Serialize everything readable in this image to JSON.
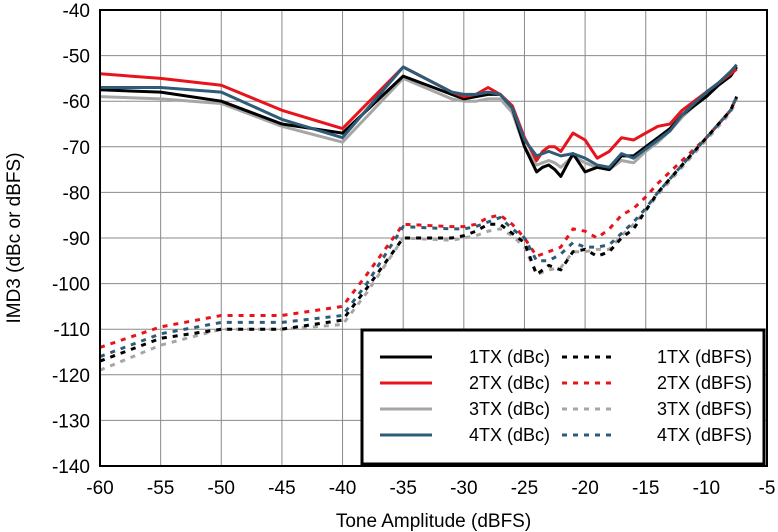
{
  "chart_data": {
    "type": "line",
    "title": "",
    "xlabel": "Tone Amplitude (dBFS)",
    "ylabel": "IMD3 (dBc or dBFS)",
    "xlim": [
      -60,
      -5
    ],
    "ylim": [
      -140,
      -40
    ],
    "xticks": [
      -60,
      -55,
      -50,
      -45,
      -40,
      -35,
      -30,
      -25,
      -20,
      -15,
      -10,
      -5
    ],
    "yticks": [
      -40,
      -50,
      -60,
      -70,
      -80,
      -90,
      -100,
      -110,
      -120,
      -130,
      -140
    ],
    "xtick_labels": [
      "-60",
      "-55",
      "-50",
      "-45",
      "-40",
      "-35",
      "-30",
      "-25",
      "-20",
      "-15",
      "-10",
      "-5"
    ],
    "ytick_labels": [
      "-40",
      "-50",
      "-60",
      "-70",
      "-80",
      "-90",
      "-100",
      "-110",
      "-120",
      "-130",
      "-140"
    ],
    "grid": true,
    "legend_position": "bottom-right",
    "series": [
      {
        "name": "1TX (dBc)",
        "color": "#000000",
        "style": "solid",
        "x": [
          -60,
          -55,
          -50,
          -45,
          -40,
          -35,
          -31,
          -30,
          -29,
          -28,
          -27,
          -26,
          -25,
          -24,
          -23.5,
          -23,
          -22.5,
          -22,
          -21,
          -20,
          -19,
          -18,
          -17,
          -16,
          -15,
          -14,
          -13,
          -12,
          -11,
          -10,
          -9,
          -8,
          -7.5
        ],
        "y": [
          -57.5,
          -58,
          -60,
          -65,
          -67,
          -54.5,
          -58.5,
          -59.5,
          -59,
          -58.5,
          -58.5,
          -61.5,
          -70,
          -75.5,
          -74.5,
          -74,
          -75,
          -76.5,
          -71.5,
          -75.5,
          -74.5,
          -75,
          -72,
          -72,
          -70,
          -68,
          -66,
          -63,
          -61,
          -59,
          -56.5,
          -54.5,
          -52.5
        ]
      },
      {
        "name": "2TX (dBc)",
        "color": "#e8141c",
        "style": "solid",
        "x": [
          -60,
          -55,
          -50,
          -45,
          -40,
          -35,
          -31,
          -30,
          -29,
          -28,
          -27,
          -26,
          -25,
          -24,
          -23.5,
          -23,
          -22.5,
          -22,
          -21,
          -20,
          -19,
          -18,
          -17,
          -16,
          -15,
          -14,
          -13,
          -12,
          -11,
          -10,
          -9,
          -8,
          -7.5
        ],
        "y": [
          -54,
          -55,
          -56.5,
          -62,
          -66,
          -52.5,
          -58,
          -59,
          -58.5,
          -57,
          -58.5,
          -61,
          -68,
          -73,
          -71,
          -70,
          -70,
          -71,
          -67,
          -68.5,
          -72.5,
          -71,
          -68,
          -68.5,
          -67,
          -65.5,
          -65,
          -62,
          -60,
          -58,
          -56,
          -54,
          -53
        ]
      },
      {
        "name": "3TX (dBc)",
        "color": "#a6a6a6",
        "style": "solid",
        "x": [
          -60,
          -55,
          -50,
          -45,
          -40,
          -35,
          -31,
          -30,
          -29,
          -28,
          -27,
          -26,
          -25,
          -24,
          -23.5,
          -23,
          -22.5,
          -22,
          -21,
          -20,
          -19,
          -18,
          -17,
          -16,
          -15,
          -14,
          -13,
          -12,
          -11,
          -10,
          -9,
          -8,
          -7.5
        ],
        "y": [
          -59,
          -59.5,
          -60.5,
          -65.5,
          -69,
          -55,
          -59.5,
          -60,
          -60,
          -59.5,
          -59.5,
          -62.5,
          -70,
          -74,
          -73.5,
          -73,
          -73.5,
          -74.5,
          -72,
          -73.5,
          -74.5,
          -75,
          -73,
          -73.5,
          -71,
          -69,
          -66.5,
          -63.5,
          -61,
          -58.5,
          -56,
          -53.5,
          -52
        ]
      },
      {
        "name": "4TX (dBc)",
        "color": "#2e5c78",
        "style": "solid",
        "x": [
          -60,
          -55,
          -50,
          -45,
          -40,
          -35,
          -31,
          -30,
          -29,
          -28,
          -27,
          -26,
          -25,
          -24,
          -23.5,
          -23,
          -22.5,
          -22,
          -21,
          -20,
          -19,
          -18,
          -17,
          -16,
          -15,
          -14,
          -13,
          -12,
          -11,
          -10,
          -9,
          -8,
          -7.5
        ],
        "y": [
          -57,
          -57,
          -58,
          -64,
          -68,
          -52.5,
          -58,
          -58.5,
          -58.5,
          -58,
          -58.5,
          -61.5,
          -68.5,
          -72,
          -71.5,
          -71,
          -71.5,
          -72,
          -71.5,
          -72.5,
          -74,
          -74.5,
          -71.5,
          -72.5,
          -70.5,
          -68.5,
          -66.5,
          -63,
          -60.5,
          -58,
          -56,
          -53.5,
          -52
        ]
      },
      {
        "name": "1TX (dBFS)",
        "color": "#000000",
        "style": "dashed",
        "x": [
          -60,
          -55,
          -50,
          -45,
          -40,
          -38,
          -35,
          -31,
          -30,
          -29,
          -28,
          -27,
          -26,
          -25,
          -24,
          -23,
          -22,
          -21,
          -20,
          -19,
          -18,
          -17,
          -16,
          -15,
          -14,
          -13,
          -12,
          -11,
          -10,
          -9,
          -8,
          -7.5
        ],
        "y": [
          -117,
          -112,
          -110,
          -110,
          -108,
          -101,
          -90,
          -90,
          -89.5,
          -88.5,
          -87,
          -87,
          -89,
          -91,
          -98,
          -96,
          -97,
          -93,
          -92.5,
          -94,
          -93,
          -90,
          -88,
          -84,
          -80,
          -77,
          -74,
          -71,
          -68,
          -65,
          -62,
          -59
        ]
      },
      {
        "name": "2TX (dBFS)",
        "color": "#e8141c",
        "style": "dashed",
        "x": [
          -60,
          -55,
          -50,
          -45,
          -40,
          -38,
          -35,
          -31,
          -30,
          -29,
          -28,
          -27,
          -26,
          -25,
          -24,
          -23,
          -22,
          -21,
          -20,
          -19,
          -18,
          -17,
          -16,
          -15,
          -14,
          -13,
          -12,
          -11,
          -10,
          -9,
          -8,
          -7.5
        ],
        "y": [
          -114,
          -109.5,
          -107,
          -107,
          -105,
          -98,
          -87,
          -87.5,
          -87.5,
          -87,
          -85.5,
          -85,
          -87,
          -90,
          -94,
          -93,
          -92,
          -88,
          -88.5,
          -90,
          -88,
          -85,
          -83.5,
          -81,
          -78,
          -75.5,
          -73,
          -70.5,
          -68,
          -65,
          -62,
          -59
        ]
      },
      {
        "name": "3TX (dBFS)",
        "color": "#a6a6a6",
        "style": "dashed",
        "x": [
          -60,
          -55,
          -50,
          -45,
          -40,
          -38,
          -35,
          -31,
          -30,
          -29,
          -28,
          -27,
          -26,
          -25,
          -24,
          -23,
          -22,
          -21,
          -20,
          -19,
          -18,
          -17,
          -16,
          -15,
          -14,
          -13,
          -12,
          -11,
          -10,
          -9,
          -8,
          -7.5
        ],
        "y": [
          -119,
          -113.5,
          -110,
          -110,
          -109,
          -102,
          -90,
          -90.5,
          -90,
          -89.5,
          -88.5,
          -88,
          -89.5,
          -92,
          -98,
          -97,
          -96.5,
          -93,
          -93,
          -92.5,
          -92.5,
          -89.5,
          -87,
          -84,
          -80.5,
          -77.5,
          -74.5,
          -71.5,
          -68.5,
          -65.5,
          -62.5,
          -59.5
        ]
      },
      {
        "name": "4TX (dBFS)",
        "color": "#2e5c78",
        "style": "dashed",
        "x": [
          -60,
          -55,
          -50,
          -45,
          -40,
          -38,
          -35,
          -31,
          -30,
          -29,
          -28,
          -27,
          -26,
          -25,
          -24,
          -23,
          -22,
          -21,
          -20,
          -19,
          -18,
          -17,
          -16,
          -15,
          -14,
          -13,
          -12,
          -11,
          -10,
          -9,
          -8,
          -7.5
        ],
        "y": [
          -116,
          -111,
          -108.5,
          -108.5,
          -107,
          -100,
          -87.5,
          -88,
          -88,
          -87.5,
          -86.5,
          -85.5,
          -88,
          -90,
          -95,
          -95,
          -93.5,
          -91,
          -92,
          -92,
          -91.5,
          -89,
          -86.5,
          -83.5,
          -80,
          -77,
          -74,
          -71,
          -68,
          -65,
          -62,
          -59
        ]
      }
    ]
  }
}
